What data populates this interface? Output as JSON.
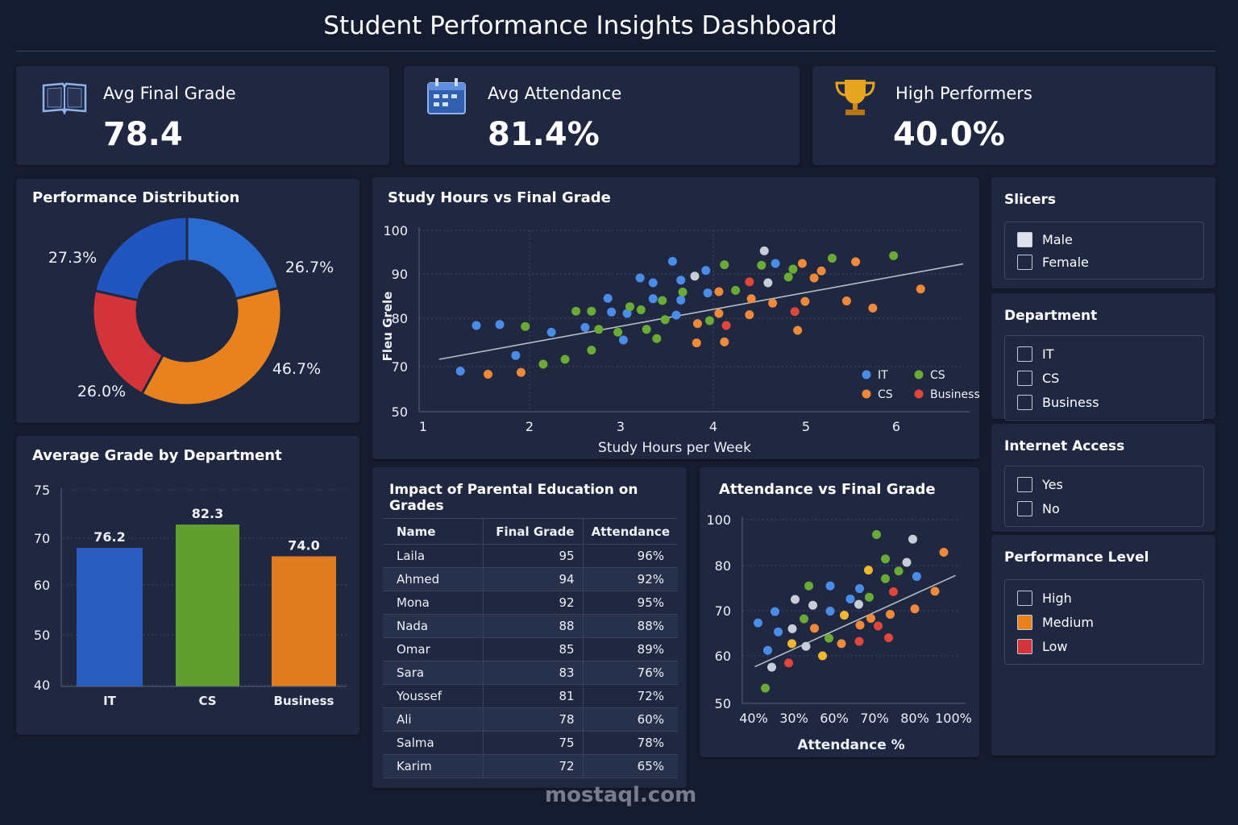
{
  "header": {
    "title": "Student Performance Insights Dashboard"
  },
  "kpis": [
    {
      "icon": "book-icon",
      "label": "Avg Final Grade",
      "value": "78.4"
    },
    {
      "icon": "calendar-icon",
      "label": "Avg Attendance",
      "value": "81.4%"
    },
    {
      "icon": "trophy-icon",
      "label": "High Performers",
      "value": "40.0%"
    }
  ],
  "chart_data": [
    {
      "type": "pie",
      "title": "Performance Distribution",
      "donut": true,
      "slices": [
        {
          "label": "26.7%",
          "value": 26.7,
          "color": "#2a6bd0"
        },
        {
          "label": "46.7%",
          "value": 46.7,
          "color": "#e8821e"
        },
        {
          "label": "26.0%",
          "value": 26.0,
          "color": "#d3343a"
        },
        {
          "label": "27.3%",
          "value": 27.3,
          "color": "#2155c0"
        }
      ]
    },
    {
      "type": "bar",
      "title": "Average Grade by Department",
      "categories": [
        "IT",
        "CS",
        "Business"
      ],
      "values": [
        76.2,
        82.3,
        74.0
      ],
      "data_labels": [
        "76.2",
        "82.3",
        "74.0"
      ],
      "colors": [
        "#2a5cc0",
        "#5f9e2f",
        "#e07b20"
      ],
      "yticks": [
        "75",
        "70",
        "60",
        "50",
        "40"
      ],
      "ylim": [
        40,
        82.3
      ]
    },
    {
      "type": "scatter",
      "title": "Study Hours vs Final Grade",
      "xlabel": "Study Hours per Week",
      "ylabel": "Fleu Grele",
      "xticks": [
        "1",
        "2",
        "3",
        "4",
        "5",
        "6"
      ],
      "yticks": [
        "100",
        "90",
        "80",
        "70",
        "50"
      ],
      "grid": true,
      "legend": "bottom-right",
      "trendline": [
        [
          1.15,
          71.5
        ],
        [
          6.74,
          92.3
        ]
      ],
      "series": [
        {
          "name": "IT",
          "color": "#4a8de8",
          "points": [
            [
              1.5,
              78.5
            ],
            [
              1.72,
              78.7
            ],
            [
              1.35,
              68.0
            ],
            [
              1.87,
              72.3
            ],
            [
              2.24,
              77.1
            ],
            [
              2.61,
              78.1
            ],
            [
              2.86,
              84.5
            ],
            [
              2.9,
              81.4
            ],
            [
              3.07,
              81.1
            ],
            [
              3.03,
              75.5
            ],
            [
              3.21,
              89.1
            ],
            [
              3.35,
              88.0
            ],
            [
              3.35,
              84.4
            ],
            [
              3.56,
              92.9
            ],
            [
              3.65,
              88.6
            ],
            [
              3.65,
              84.1
            ],
            [
              3.6,
              80.7
            ],
            [
              3.92,
              90.8
            ],
            [
              3.94,
              85.7
            ],
            [
              4.67,
              92.4
            ]
          ]
        },
        {
          "color": "#c8cdd8",
          "points": [
            [
              4.55,
              95.3
            ],
            [
              3.8,
              89.5
            ],
            [
              4.59,
              88.0
            ]
          ]
        },
        {
          "name": "CS",
          "color": "#6aab35",
          "points": [
            [
              1.96,
              78.3
            ],
            [
              2.15,
              70.5
            ],
            [
              2.39,
              71.5
            ],
            [
              2.51,
              81.6
            ],
            [
              2.68,
              81.6
            ],
            [
              2.68,
              73.4
            ],
            [
              2.76,
              77.7
            ],
            [
              2.97,
              77.1
            ],
            [
              3.1,
              82.6
            ],
            [
              3.22,
              81.9
            ],
            [
              3.28,
              77.7
            ],
            [
              3.39,
              75.8
            ],
            [
              3.45,
              84.0
            ],
            [
              3.48,
              79.7
            ],
            [
              3.67,
              85.9
            ],
            [
              3.96,
              79.5
            ],
            [
              4.12,
              92.1
            ],
            [
              4.24,
              86.3
            ],
            [
              4.52,
              92.0
            ],
            [
              4.81,
              89.3
            ],
            [
              4.86,
              91.1
            ],
            [
              5.29,
              93.6
            ],
            [
              5.97,
              94.2
            ]
          ]
        },
        {
          "name": "CS",
          "color": "#f08a3a",
          "points": [
            [
              1.61,
              66.6
            ],
            [
              1.92,
              67.4
            ],
            [
              3.83,
              78.9
            ],
            [
              4.06,
              81.1
            ],
            [
              4.06,
              86.0
            ],
            [
              3.82,
              74.9
            ],
            [
              4.12,
              75.1
            ],
            [
              4.39,
              80.8
            ],
            [
              4.41,
              84.4
            ],
            [
              4.64,
              83.4
            ],
            [
              4.91,
              77.5
            ],
            [
              4.99,
              83.8
            ],
            [
              4.96,
              92.4
            ],
            [
              5.09,
              89.1
            ],
            [
              5.17,
              90.7
            ],
            [
              5.45,
              83.9
            ],
            [
              5.55,
              92.8
            ],
            [
              5.74,
              82.3
            ],
            [
              6.27,
              86.6
            ]
          ]
        },
        {
          "name": "Business",
          "color": "#e0463a",
          "points": [
            [
              4.14,
              78.5
            ],
            [
              4.88,
              81.5
            ],
            [
              4.39,
              88.2
            ]
          ]
        }
      ]
    },
    {
      "type": "scatter",
      "title": "Attendance vs Final Grade",
      "xlabel": "Attendance %",
      "xticks": [
        "40%",
        "30%",
        "60%",
        "70%",
        "80%",
        "100%"
      ],
      "yticks": [
        "100",
        "80",
        "70",
        "60",
        "50"
      ],
      "grid": true,
      "trendline": [
        [
          40.3,
          57.7
        ],
        [
          90.5,
          77.8
        ]
      ],
      "series": [
        {
          "color": "#4a8de8",
          "points": [
            [
              41.1,
              67.3
            ],
            [
              45.3,
              69.8
            ],
            [
              43.5,
              61.2
            ],
            [
              46.1,
              65.3
            ],
            [
              59,
              75.5
            ],
            [
              59,
              69.9
            ],
            [
              64,
              72.6
            ],
            [
              66.3,
              74.9
            ],
            [
              80.5,
              77.6
            ]
          ]
        },
        {
          "color": "#c8cdd8",
          "points": [
            [
              50.3,
              72.5
            ],
            [
              54.7,
              71.2
            ],
            [
              49.6,
              66.0
            ],
            [
              44.5,
              57.6
            ],
            [
              53,
              62.1
            ],
            [
              66.1,
              71.4
            ],
            [
              78,
              81.4
            ],
            [
              79.5,
              91.5
            ]
          ]
        },
        {
          "color": "#6aab35",
          "points": [
            [
              42.9,
              53.2
            ],
            [
              52.5,
              68.2
            ],
            [
              53.7,
              75.5
            ],
            [
              58.7,
              63.9
            ],
            [
              68.7,
              73.0
            ],
            [
              70.5,
              93.5
            ],
            [
              72.7,
              82.9
            ],
            [
              72.7,
              77.1
            ],
            [
              76,
              78.8
            ]
          ]
        },
        {
          "color": "#f0b830",
          "points": [
            [
              49.5,
              62.7
            ],
            [
              57.1,
              60.0
            ],
            [
              62.5,
              69.0
            ],
            [
              68.5,
              79.0
            ]
          ]
        },
        {
          "color": "#f08a3a",
          "points": [
            [
              55.1,
              66.1
            ],
            [
              61.8,
              62.7
            ],
            [
              66.4,
              66.8
            ],
            [
              69.1,
              68.3
            ],
            [
              73.9,
              69.2
            ],
            [
              80,
              70.4
            ],
            [
              85.2,
              74.3
            ],
            [
              87.5,
              85.8
            ]
          ]
        },
        {
          "color": "#e0463a",
          "points": [
            [
              48.7,
              58.5
            ],
            [
              66.2,
              63.2
            ],
            [
              70.9,
              66.6
            ],
            [
              74.7,
              74.2
            ],
            [
              73.5,
              64.0
            ]
          ]
        }
      ]
    }
  ],
  "table": {
    "title": "Impact of Parental Education on Grades",
    "columns": [
      "Name",
      "Final Grade",
      "Attendance"
    ],
    "rows": [
      [
        "Laila",
        "95",
        "96%"
      ],
      [
        "Ahmed",
        "94",
        "92%"
      ],
      [
        "Mona",
        "92",
        "95%"
      ],
      [
        "Nada",
        "88",
        "88%"
      ],
      [
        "Omar",
        "85",
        "89%"
      ],
      [
        "Sara",
        "83",
        "76%"
      ],
      [
        "Youssef",
        "81",
        "72%"
      ],
      [
        "Ali",
        "78",
        "60%"
      ],
      [
        "Salma",
        "75",
        "78%"
      ],
      [
        "Karim",
        "72",
        "65%"
      ]
    ]
  },
  "slicers": [
    {
      "title": "Slicers",
      "options": [
        {
          "label": "Male",
          "checked": true,
          "color": "#dfe2ea"
        },
        {
          "label": "Female"
        }
      ]
    },
    {
      "title": "Department",
      "options": [
        {
          "label": "IT"
        },
        {
          "label": "CS"
        },
        {
          "label": "Business"
        }
      ]
    },
    {
      "title": "Internet Access",
      "options": [
        {
          "label": "Yes"
        },
        {
          "label": "No"
        }
      ]
    },
    {
      "title": "Performance Level",
      "options": [
        {
          "label": "High"
        },
        {
          "label": "Medium",
          "color": "#e8821e"
        },
        {
          "label": "Low",
          "color": "#d3343a"
        }
      ]
    }
  ],
  "watermark": "mostaql.com"
}
